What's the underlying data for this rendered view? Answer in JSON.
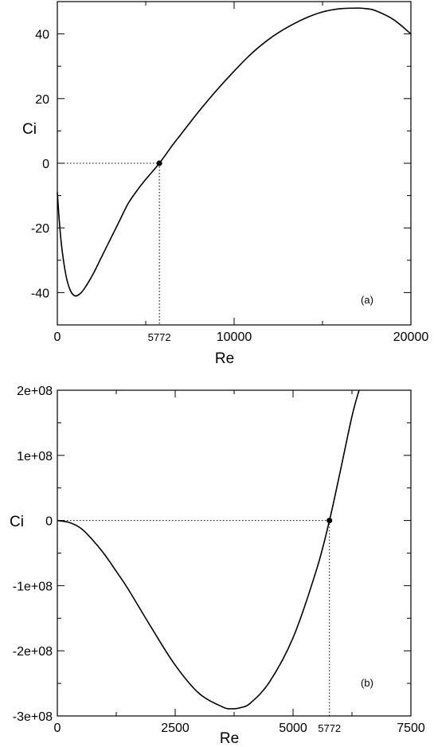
{
  "chart_data": [
    {
      "type": "line",
      "panel_label": "(a)",
      "xlabel": "Re",
      "ylabel": "Ci",
      "xlim": [
        0,
        20000
      ],
      "ylim": [
        -50,
        50
      ],
      "x_ticks": [
        "0",
        "10000",
        "20000"
      ],
      "x_tick_values": [
        0,
        10000,
        20000
      ],
      "y_ticks": [
        "-40",
        "-20",
        "0",
        "20",
        "40"
      ],
      "y_tick_values": [
        -40,
        -20,
        0,
        20,
        40
      ],
      "marker": {
        "x": 5772,
        "y": 0,
        "label": "5772"
      },
      "series": [
        {
          "x": [
            0,
            100,
            250,
            500,
            750,
            1000,
            1250,
            1500,
            2000,
            2500,
            3000,
            3500,
            4000,
            4500,
            5000,
            5772,
            6500,
            7000,
            8000,
            9000,
            10000,
            11000,
            12000,
            13000,
            14000,
            15000,
            16000,
            17000,
            17500,
            18000,
            19000,
            20000
          ],
          "y": [
            -9,
            -17,
            -26,
            -35,
            -39.5,
            -41,
            -40.5,
            -39,
            -34.5,
            -29,
            -23.5,
            -18,
            -12.5,
            -8.5,
            -5,
            0,
            5.5,
            9,
            16,
            22.5,
            28.5,
            34,
            38.5,
            42,
            44.8,
            46.8,
            47.8,
            48,
            47.8,
            47.2,
            44.5,
            40
          ]
        }
      ]
    },
    {
      "type": "line",
      "panel_label": "(b)",
      "xlabel": "Re",
      "ylabel": "Ci",
      "xlim": [
        0,
        7500
      ],
      "ylim": [
        -300000000,
        200000000
      ],
      "x_ticks": [
        "0",
        "2500",
        "5000",
        "7500"
      ],
      "x_tick_values": [
        0,
        2500,
        5000,
        7500
      ],
      "y_ticks": [
        "-3e+08",
        "-2e+08",
        "-1e+08",
        "0",
        "1e+08",
        "2e+08"
      ],
      "y_tick_values": [
        -300000000,
        -200000000,
        -100000000,
        0,
        100000000,
        200000000
      ],
      "marker": {
        "x": 5772,
        "y": 0,
        "label": "5772"
      },
      "series": [
        {
          "x": [
            0,
            250,
            500,
            750,
            1000,
            1250,
            1500,
            2000,
            2500,
            3000,
            3500,
            3700,
            3900,
            4100,
            4500,
            5000,
            5500,
            5772,
            6000,
            6250,
            6400
          ],
          "y": [
            0,
            -3000000,
            -12000000,
            -30000000,
            -52000000,
            -78000000,
            -105000000,
            -165000000,
            -222000000,
            -265000000,
            -286000000,
            -289000000,
            -287000000,
            -280000000,
            -248000000,
            -180000000,
            -75000000,
            0,
            75000000,
            160000000,
            200000000
          ]
        }
      ]
    }
  ]
}
